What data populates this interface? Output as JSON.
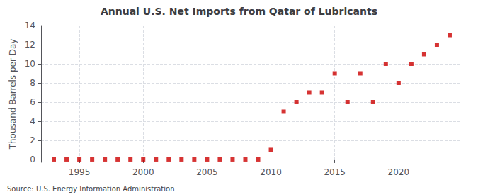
{
  "chart_data": {
    "type": "scatter",
    "title": "Annual U.S. Net Imports from Qatar of Lubricants",
    "ylabel": "Thousand Barrels per Day",
    "annotations": [
      "Source: U.S. Energy Information Administration"
    ],
    "x": [
      1993,
      1994,
      1995,
      1996,
      1997,
      1998,
      1999,
      2000,
      2001,
      2002,
      2003,
      2004,
      2005,
      2006,
      2007,
      2008,
      2009,
      2010,
      2011,
      2012,
      2013,
      2014,
      2015,
      2016,
      2017,
      2018,
      2019,
      2020,
      2021,
      2022,
      2023,
      2024
    ],
    "values": [
      0,
      0,
      0,
      0,
      0,
      0,
      0,
      0,
      0,
      0,
      0,
      0,
      0,
      0,
      0,
      0,
      0,
      1,
      5,
      6,
      7,
      7,
      9,
      6,
      9,
      6,
      10,
      8,
      10,
      11,
      12,
      13
    ],
    "color": "#cc0000",
    "marker": "square",
    "xlim": [
      1992,
      2025
    ],
    "xticks": [
      1995,
      2000,
      2005,
      2010,
      2015,
      2020
    ],
    "ylim": [
      -0.3,
      14
    ],
    "yticks": [
      0,
      2,
      4,
      6,
      8,
      10,
      12,
      14
    ],
    "grid": true
  }
}
